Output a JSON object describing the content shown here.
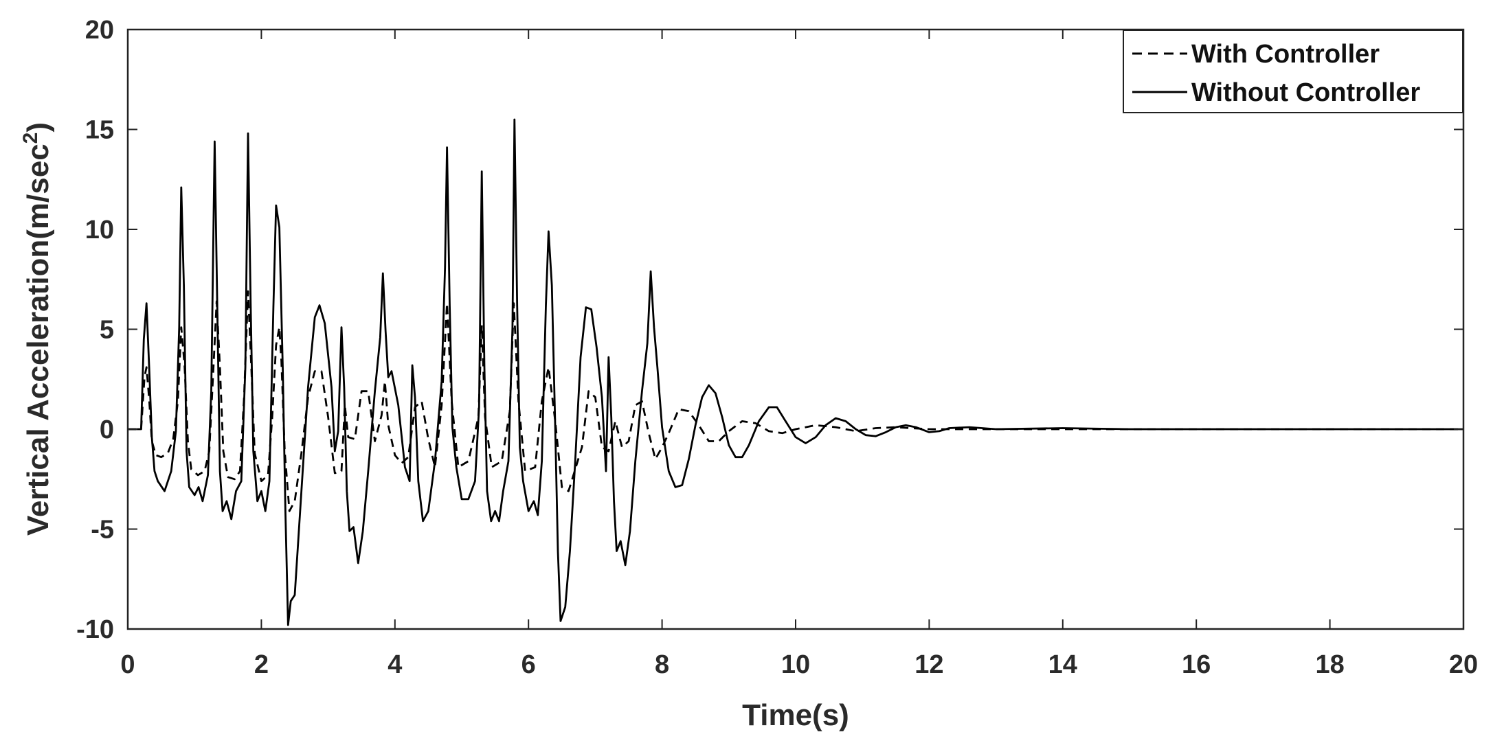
{
  "chart_data": {
    "type": "line",
    "xlabel": "Time(s)",
    "ylabel_main": "Vertical Acceleration(m/sec",
    "ylabel_sup": "2",
    "ylabel_close": ")",
    "xlim": [
      0,
      20
    ],
    "ylim": [
      -10,
      20
    ],
    "xticks": [
      "0",
      "2",
      "4",
      "6",
      "8",
      "10",
      "12",
      "14",
      "16",
      "18",
      "20"
    ],
    "yticks": [
      "-10",
      "-5",
      "0",
      "5",
      "10",
      "15",
      "20"
    ],
    "grid": false,
    "legend_position": "top-right",
    "series": [
      {
        "name": "With Controller",
        "style": "dashed",
        "color": "#000000",
        "points": [
          [
            0,
            0
          ],
          [
            0.2,
            0
          ],
          [
            0.25,
            2.6
          ],
          [
            0.28,
            3.1
          ],
          [
            0.32,
            1.5
          ],
          [
            0.36,
            -0.6
          ],
          [
            0.42,
            -1.3
          ],
          [
            0.5,
            -1.4
          ],
          [
            0.6,
            -1.2
          ],
          [
            0.68,
            -0.5
          ],
          [
            0.75,
            1.4
          ],
          [
            0.8,
            5.1
          ],
          [
            0.85,
            3.2
          ],
          [
            0.9,
            -0.6
          ],
          [
            0.95,
            -2.0
          ],
          [
            1.05,
            -2.3
          ],
          [
            1.15,
            -2.1
          ],
          [
            1.22,
            -1.1
          ],
          [
            1.28,
            2.9
          ],
          [
            1.33,
            6.4
          ],
          [
            1.38,
            3.1
          ],
          [
            1.43,
            -1.1
          ],
          [
            1.5,
            -2.4
          ],
          [
            1.6,
            -2.5
          ],
          [
            1.68,
            -2.1
          ],
          [
            1.74,
            1.5
          ],
          [
            1.8,
            6.9
          ],
          [
            1.85,
            3.1
          ],
          [
            1.9,
            -1.2
          ],
          [
            2.0,
            -2.6
          ],
          [
            2.1,
            -2.3
          ],
          [
            2.16,
            0.5
          ],
          [
            2.22,
            4.2
          ],
          [
            2.27,
            5.1
          ],
          [
            2.3,
            3.4
          ],
          [
            2.35,
            -1.1
          ],
          [
            2.42,
            -4.1
          ],
          [
            2.5,
            -3.6
          ],
          [
            2.6,
            -1.2
          ],
          [
            2.7,
            1.6
          ],
          [
            2.8,
            2.9
          ],
          [
            2.9,
            2.9
          ],
          [
            3.0,
            0.6
          ],
          [
            3.1,
            -2.2
          ],
          [
            3.2,
            -2.1
          ],
          [
            3.25,
            1.2
          ],
          [
            3.3,
            -0.4
          ],
          [
            3.4,
            -0.5
          ],
          [
            3.5,
            1.9
          ],
          [
            3.6,
            1.9
          ],
          [
            3.7,
            -0.6
          ],
          [
            3.8,
            0.7
          ],
          [
            3.85,
            2.4
          ],
          [
            3.9,
            0.2
          ],
          [
            4.0,
            -1.3
          ],
          [
            4.1,
            -1.7
          ],
          [
            4.2,
            -1.4
          ],
          [
            4.3,
            1.1
          ],
          [
            4.4,
            1.4
          ],
          [
            4.5,
            -0.5
          ],
          [
            4.6,
            -1.9
          ],
          [
            4.7,
            1.2
          ],
          [
            4.78,
            6.3
          ],
          [
            4.85,
            1.4
          ],
          [
            4.95,
            -1.9
          ],
          [
            5.1,
            -1.6
          ],
          [
            5.25,
            0.6
          ],
          [
            5.3,
            5.2
          ],
          [
            5.35,
            0.6
          ],
          [
            5.45,
            -1.9
          ],
          [
            5.6,
            -1.6
          ],
          [
            5.72,
            0.9
          ],
          [
            5.78,
            6.3
          ],
          [
            5.85,
            1.4
          ],
          [
            5.95,
            -2.1
          ],
          [
            6.1,
            -1.9
          ],
          [
            6.2,
            1.4
          ],
          [
            6.3,
            3.1
          ],
          [
            6.4,
            0.4
          ],
          [
            6.5,
            -2.9
          ],
          [
            6.6,
            -3.1
          ],
          [
            6.8,
            -0.9
          ],
          [
            6.9,
            1.9
          ],
          [
            7.0,
            1.6
          ],
          [
            7.1,
            -0.9
          ],
          [
            7.2,
            -1.1
          ],
          [
            7.3,
            0.4
          ],
          [
            7.4,
            -0.9
          ],
          [
            7.5,
            -0.6
          ],
          [
            7.6,
            1.2
          ],
          [
            7.7,
            1.4
          ],
          [
            7.8,
            -0.2
          ],
          [
            7.9,
            -1.5
          ],
          [
            8.0,
            -0.9
          ],
          [
            8.1,
            -0.2
          ],
          [
            8.25,
            1.0
          ],
          [
            8.4,
            0.9
          ],
          [
            8.55,
            0.2
          ],
          [
            8.7,
            -0.6
          ],
          [
            8.85,
            -0.6
          ],
          [
            9.0,
            -0.1
          ],
          [
            9.2,
            0.4
          ],
          [
            9.4,
            0.3
          ],
          [
            9.6,
            -0.1
          ],
          [
            9.8,
            -0.2
          ],
          [
            10.0,
            0.0
          ],
          [
            10.3,
            0.2
          ],
          [
            10.6,
            0.1
          ],
          [
            10.9,
            -0.1
          ],
          [
            11.2,
            0.05
          ],
          [
            11.5,
            0.1
          ],
          [
            12.0,
            0
          ],
          [
            20,
            0
          ]
        ]
      },
      {
        "name": "Without Controller",
        "style": "solid",
        "color": "#000000",
        "points": [
          [
            0,
            0
          ],
          [
            0.2,
            0
          ],
          [
            0.24,
            4.5
          ],
          [
            0.28,
            6.3
          ],
          [
            0.32,
            3.1
          ],
          [
            0.36,
            -0.4
          ],
          [
            0.4,
            -2.1
          ],
          [
            0.45,
            -2.6
          ],
          [
            0.55,
            -3.1
          ],
          [
            0.65,
            -2.1
          ],
          [
            0.72,
            -0.1
          ],
          [
            0.77,
            5.1
          ],
          [
            0.8,
            12.1
          ],
          [
            0.84,
            7.2
          ],
          [
            0.88,
            -1.1
          ],
          [
            0.92,
            -2.9
          ],
          [
            1.0,
            -3.3
          ],
          [
            1.06,
            -2.9
          ],
          [
            1.12,
            -3.6
          ],
          [
            1.2,
            -2.3
          ],
          [
            1.25,
            1.9
          ],
          [
            1.3,
            14.4
          ],
          [
            1.34,
            6.2
          ],
          [
            1.38,
            -2.1
          ],
          [
            1.42,
            -4.1
          ],
          [
            1.48,
            -3.6
          ],
          [
            1.55,
            -4.5
          ],
          [
            1.62,
            -3.1
          ],
          [
            1.7,
            -2.6
          ],
          [
            1.76,
            3.1
          ],
          [
            1.8,
            14.8
          ],
          [
            1.84,
            6.3
          ],
          [
            1.88,
            -1.1
          ],
          [
            1.94,
            -3.6
          ],
          [
            2.0,
            -3.1
          ],
          [
            2.06,
            -4.1
          ],
          [
            2.12,
            -2.6
          ],
          [
            2.18,
            6.1
          ],
          [
            2.22,
            11.2
          ],
          [
            2.27,
            10.1
          ],
          [
            2.32,
            3.1
          ],
          [
            2.36,
            -4.1
          ],
          [
            2.4,
            -9.8
          ],
          [
            2.44,
            -8.6
          ],
          [
            2.5,
            -8.3
          ],
          [
            2.6,
            -3.1
          ],
          [
            2.7,
            2.1
          ],
          [
            2.8,
            5.6
          ],
          [
            2.87,
            6.2
          ],
          [
            2.95,
            5.3
          ],
          [
            3.05,
            2.1
          ],
          [
            3.1,
            -1.1
          ],
          [
            3.15,
            -0.1
          ],
          [
            3.2,
            5.1
          ],
          [
            3.24,
            2.1
          ],
          [
            3.28,
            -3.1
          ],
          [
            3.32,
            -5.1
          ],
          [
            3.38,
            -4.9
          ],
          [
            3.45,
            -6.7
          ],
          [
            3.52,
            -5.1
          ],
          [
            3.6,
            -2.1
          ],
          [
            3.7,
            1.9
          ],
          [
            3.78,
            4.6
          ],
          [
            3.82,
            7.8
          ],
          [
            3.86,
            4.9
          ],
          [
            3.9,
            2.6
          ],
          [
            3.95,
            2.9
          ],
          [
            4.05,
            1.2
          ],
          [
            4.15,
            -1.9
          ],
          [
            4.22,
            -2.6
          ],
          [
            4.26,
            3.2
          ],
          [
            4.3,
            1.6
          ],
          [
            4.35,
            -2.6
          ],
          [
            4.42,
            -4.6
          ],
          [
            4.5,
            -4.1
          ],
          [
            4.6,
            -1.6
          ],
          [
            4.7,
            2.4
          ],
          [
            4.75,
            8.1
          ],
          [
            4.78,
            14.1
          ],
          [
            4.82,
            6.2
          ],
          [
            4.86,
            0.1
          ],
          [
            4.92,
            -1.9
          ],
          [
            5.0,
            -3.5
          ],
          [
            5.1,
            -3.5
          ],
          [
            5.2,
            -2.6
          ],
          [
            5.26,
            1.1
          ],
          [
            5.3,
            12.9
          ],
          [
            5.34,
            3.1
          ],
          [
            5.38,
            -3.1
          ],
          [
            5.44,
            -4.6
          ],
          [
            5.5,
            -4.1
          ],
          [
            5.56,
            -4.6
          ],
          [
            5.62,
            -3.1
          ],
          [
            5.7,
            -1.6
          ],
          [
            5.76,
            5.1
          ],
          [
            5.79,
            15.5
          ],
          [
            5.83,
            6.2
          ],
          [
            5.87,
            -0.9
          ],
          [
            5.92,
            -2.6
          ],
          [
            6.0,
            -4.1
          ],
          [
            6.08,
            -3.6
          ],
          [
            6.14,
            -4.3
          ],
          [
            6.2,
            -1.6
          ],
          [
            6.26,
            6.2
          ],
          [
            6.3,
            9.9
          ],
          [
            6.35,
            7.2
          ],
          [
            6.4,
            0.1
          ],
          [
            6.44,
            -6.1
          ],
          [
            6.48,
            -9.6
          ],
          [
            6.55,
            -8.9
          ],
          [
            6.62,
            -6.1
          ],
          [
            6.7,
            -1.6
          ],
          [
            6.78,
            3.6
          ],
          [
            6.86,
            6.1
          ],
          [
            6.94,
            6.0
          ],
          [
            7.02,
            4.1
          ],
          [
            7.1,
            1.6
          ],
          [
            7.16,
            -2.1
          ],
          [
            7.2,
            3.6
          ],
          [
            7.24,
            0.6
          ],
          [
            7.28,
            -3.6
          ],
          [
            7.32,
            -6.1
          ],
          [
            7.38,
            -5.6
          ],
          [
            7.45,
            -6.8
          ],
          [
            7.52,
            -5.1
          ],
          [
            7.6,
            -1.6
          ],
          [
            7.7,
            1.9
          ],
          [
            7.78,
            4.3
          ],
          [
            7.83,
            7.9
          ],
          [
            7.88,
            5.1
          ],
          [
            7.93,
            3.1
          ],
          [
            8.0,
            0.1
          ],
          [
            8.1,
            -2.1
          ],
          [
            8.2,
            -2.9
          ],
          [
            8.3,
            -2.8
          ],
          [
            8.4,
            -1.5
          ],
          [
            8.5,
            0.2
          ],
          [
            8.6,
            1.6
          ],
          [
            8.7,
            2.2
          ],
          [
            8.8,
            1.8
          ],
          [
            8.9,
            0.6
          ],
          [
            9.0,
            -0.8
          ],
          [
            9.1,
            -1.4
          ],
          [
            9.2,
            -1.4
          ],
          [
            9.3,
            -0.8
          ],
          [
            9.45,
            0.4
          ],
          [
            9.6,
            1.1
          ],
          [
            9.72,
            1.1
          ],
          [
            9.85,
            0.4
          ],
          [
            10.0,
            -0.4
          ],
          [
            10.15,
            -0.7
          ],
          [
            10.3,
            -0.4
          ],
          [
            10.45,
            0.2
          ],
          [
            10.6,
            0.55
          ],
          [
            10.75,
            0.4
          ],
          [
            10.9,
            0.0
          ],
          [
            11.05,
            -0.3
          ],
          [
            11.2,
            -0.35
          ],
          [
            11.35,
            -0.15
          ],
          [
            11.5,
            0.1
          ],
          [
            11.65,
            0.2
          ],
          [
            11.8,
            0.1
          ],
          [
            12.0,
            -0.15
          ],
          [
            12.15,
            -0.1
          ],
          [
            12.3,
            0.05
          ],
          [
            12.6,
            0.1
          ],
          [
            13.0,
            0.0
          ],
          [
            14.0,
            0.05
          ],
          [
            15,
            0.0
          ],
          [
            20,
            0
          ]
        ]
      }
    ]
  }
}
